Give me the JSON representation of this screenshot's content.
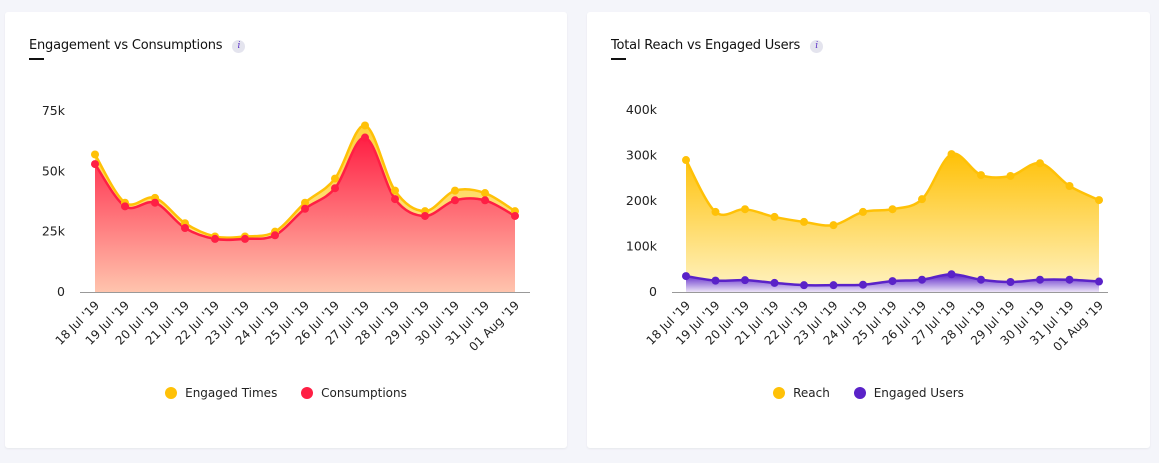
{
  "charts": [
    {
      "title": "Engagement vs Consumptions",
      "info_icon": "i",
      "chart_data": {
        "type": "area",
        "categories": [
          "18 Jul '19",
          "19 Jul '19",
          "20 Jul '19",
          "21 Jul '19",
          "22 Jul '19",
          "23 Jul '19",
          "24 Jul '19",
          "25 Jul '19",
          "26 Jul '19",
          "27 Jul '19",
          "28 Jul '19",
          "29 Jul '19",
          "30 Jul '19",
          "31 Jul '19",
          "01 Aug '19"
        ],
        "ylim": [
          0,
          75000
        ],
        "yticks": [
          0,
          25000,
          50000,
          75000
        ],
        "ytick_labels": [
          "0",
          "25k",
          "50k",
          "75k"
        ],
        "grid": false,
        "legend_position": "bottom",
        "series": [
          {
            "name": "Engaged Times",
            "color": "#ffc107",
            "values": [
              57000,
              37000,
              39000,
              28500,
              23000,
              23000,
              25000,
              37000,
              47000,
              69000,
              42000,
              33500,
              42000,
              41000,
              33500
            ]
          },
          {
            "name": "Consumptions",
            "color": "#ff1f44",
            "values": [
              53000,
              35500,
              37000,
              26500,
              22000,
              22000,
              23500,
              34500,
              43000,
              64000,
              38500,
              31500,
              38000,
              38000,
              31500
            ]
          }
        ]
      }
    },
    {
      "title": "Total Reach vs Engaged Users",
      "info_icon": "i",
      "chart_data": {
        "type": "area",
        "categories": [
          "18 Jul '19",
          "19 Jul '19",
          "20 Jul '19",
          "21 Jul '19",
          "22 Jul '19",
          "23 Jul '19",
          "24 Jul '19",
          "25 Jul '19",
          "26 Jul '19",
          "27 Jul '19",
          "28 Jul '19",
          "29 Jul '19",
          "30 Jul '19",
          "31 Jul '19",
          "01 Aug '19"
        ],
        "ylim": [
          0,
          400000
        ],
        "yticks": [
          0,
          100000,
          200000,
          300000,
          400000
        ],
        "ytick_labels": [
          "0",
          "100k",
          "200k",
          "300k",
          "400k"
        ],
        "grid": false,
        "legend_position": "bottom",
        "series": [
          {
            "name": "Reach",
            "color": "#ffc107",
            "values": [
              290000,
              176000,
              182000,
              165000,
              154000,
              147000,
              176000,
              182000,
              204000,
              303000,
              257000,
              255000,
              283000,
              233000,
              202000
            ]
          },
          {
            "name": "Engaged Users",
            "color": "#5a22c8",
            "values": [
              35000,
              25000,
              26000,
              20000,
              15000,
              15000,
              16000,
              24000,
              27000,
              39000,
              27000,
              22000,
              27000,
              27000,
              23000
            ]
          }
        ]
      }
    }
  ]
}
